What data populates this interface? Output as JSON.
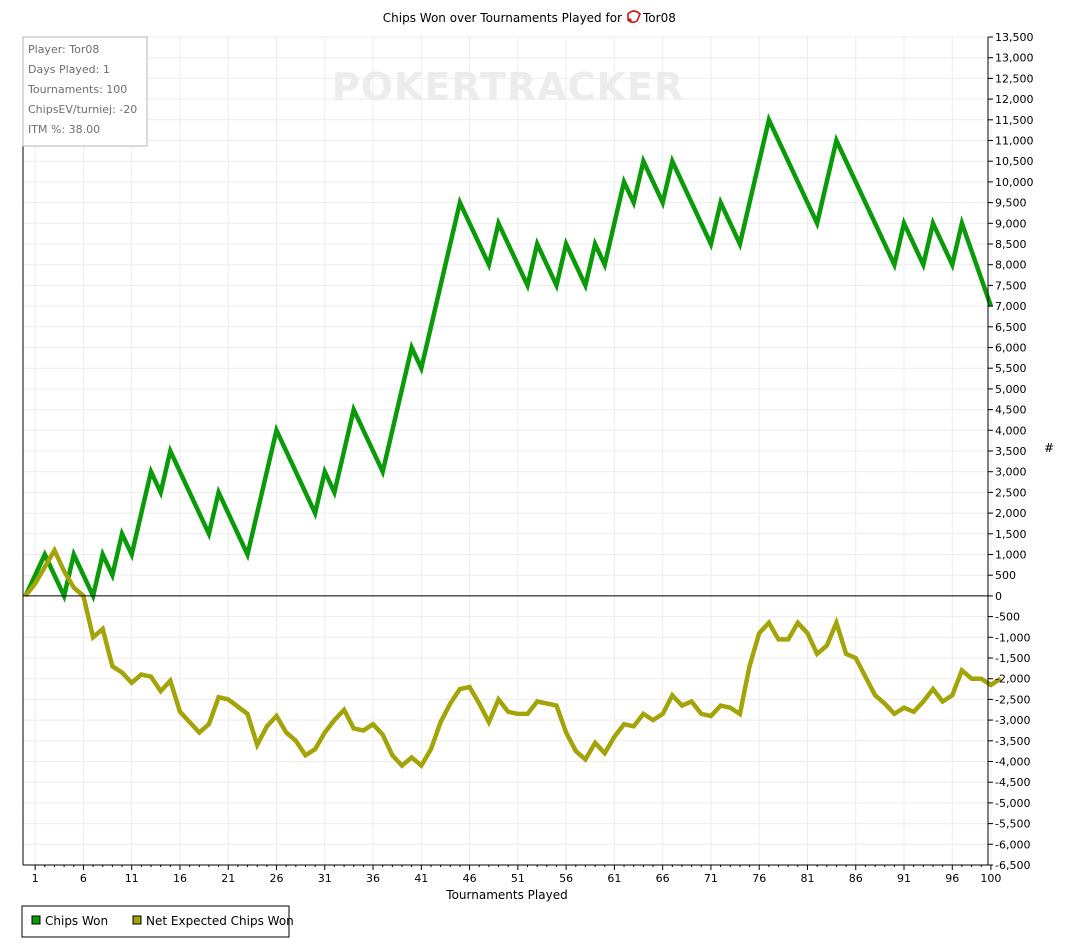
{
  "chart_data": {
    "type": "line",
    "title": "Chips Won over Tournaments Played for",
    "player_name": "Tor08",
    "xlabel": "Tournaments Played",
    "ylabel": "#",
    "xlim": [
      1,
      100
    ],
    "ylim": [
      -6500,
      13500
    ],
    "y_step": 500,
    "x_ticks": [
      1,
      6,
      11,
      16,
      21,
      26,
      31,
      36,
      41,
      46,
      51,
      56,
      61,
      66,
      71,
      76,
      81,
      86,
      91,
      96,
      100
    ],
    "grid": true,
    "legend_position": "bottom-left",
    "watermark": "POKERTRACKER",
    "info_box": [
      "Player: Tor08",
      "Days Played: 1",
      "Tournaments: 100",
      "ChipsEV/turniej: -20",
      "ITM %: 38.00"
    ],
    "series": [
      {
        "name": "Chips Won",
        "color": "#0a9a0a",
        "points": [
          [
            0,
            0
          ],
          [
            2,
            1000
          ],
          [
            4,
            0
          ],
          [
            5,
            1000
          ],
          [
            7,
            0
          ],
          [
            8,
            1000
          ],
          [
            9,
            500
          ],
          [
            10,
            1500
          ],
          [
            11,
            1000
          ],
          [
            13,
            3000
          ],
          [
            14,
            2500
          ],
          [
            15,
            3500
          ],
          [
            19,
            1500
          ],
          [
            20,
            2500
          ],
          [
            23,
            1000
          ],
          [
            26,
            4000
          ],
          [
            30,
            2000
          ],
          [
            31,
            3000
          ],
          [
            32,
            2500
          ],
          [
            34,
            4500
          ],
          [
            37,
            3000
          ],
          [
            40,
            6000
          ],
          [
            41,
            5500
          ],
          [
            45,
            9500
          ],
          [
            48,
            8000
          ],
          [
            49,
            9000
          ],
          [
            52,
            7500
          ],
          [
            53,
            8500
          ],
          [
            55,
            7500
          ],
          [
            56,
            8500
          ],
          [
            58,
            7500
          ],
          [
            59,
            8500
          ],
          [
            60,
            8000
          ],
          [
            62,
            10000
          ],
          [
            63,
            9500
          ],
          [
            64,
            10500
          ],
          [
            66,
            9500
          ],
          [
            67,
            10500
          ],
          [
            71,
            8500
          ],
          [
            72,
            9500
          ],
          [
            74,
            8500
          ],
          [
            77,
            11500
          ],
          [
            82,
            9000
          ],
          [
            84,
            11000
          ],
          [
            90,
            8000
          ],
          [
            91,
            9000
          ],
          [
            93,
            8000
          ],
          [
            94,
            9000
          ],
          [
            96,
            8000
          ],
          [
            97,
            9000
          ],
          [
            100,
            7000
          ]
        ]
      },
      {
        "name": "Net Expected Chips Won",
        "color": "#a3a30a",
        "points": [
          [
            0,
            0
          ],
          [
            1,
            300
          ],
          [
            2,
            700
          ],
          [
            3,
            1100
          ],
          [
            4,
            600
          ],
          [
            5,
            200
          ],
          [
            6,
            0
          ],
          [
            7,
            -1000
          ],
          [
            8,
            -800
          ],
          [
            9,
            -1700
          ],
          [
            10,
            -1850
          ],
          [
            11,
            -2100
          ],
          [
            12,
            -1900
          ],
          [
            13,
            -1950
          ],
          [
            14,
            -2300
          ],
          [
            15,
            -2050
          ],
          [
            16,
            -2800
          ],
          [
            18,
            -3300
          ],
          [
            19,
            -3100
          ],
          [
            20,
            -2450
          ],
          [
            21,
            -2500
          ],
          [
            23,
            -2850
          ],
          [
            24,
            -3600
          ],
          [
            25,
            -3150
          ],
          [
            26,
            -2900
          ],
          [
            27,
            -3300
          ],
          [
            28,
            -3500
          ],
          [
            29,
            -3850
          ],
          [
            30,
            -3700
          ],
          [
            31,
            -3300
          ],
          [
            32,
            -3000
          ],
          [
            33,
            -2750
          ],
          [
            34,
            -3200
          ],
          [
            35,
            -3250
          ],
          [
            36,
            -3100
          ],
          [
            37,
            -3350
          ],
          [
            38,
            -3850
          ],
          [
            39,
            -4100
          ],
          [
            40,
            -3900
          ],
          [
            41,
            -4100
          ],
          [
            42,
            -3700
          ],
          [
            43,
            -3050
          ],
          [
            44,
            -2600
          ],
          [
            45,
            -2250
          ],
          [
            46,
            -2200
          ],
          [
            47,
            -2600
          ],
          [
            48,
            -3050
          ],
          [
            49,
            -2500
          ],
          [
            50,
            -2800
          ],
          [
            51,
            -2850
          ],
          [
            52,
            -2850
          ],
          [
            53,
            -2550
          ],
          [
            54,
            -2600
          ],
          [
            55,
            -2650
          ],
          [
            56,
            -3300
          ],
          [
            57,
            -3750
          ],
          [
            58,
            -3950
          ],
          [
            59,
            -3550
          ],
          [
            60,
            -3800
          ],
          [
            61,
            -3400
          ],
          [
            62,
            -3100
          ],
          [
            63,
            -3150
          ],
          [
            64,
            -2850
          ],
          [
            65,
            -3000
          ],
          [
            66,
            -2850
          ],
          [
            67,
            -2400
          ],
          [
            68,
            -2650
          ],
          [
            69,
            -2550
          ],
          [
            70,
            -2850
          ],
          [
            71,
            -2900
          ],
          [
            72,
            -2650
          ],
          [
            73,
            -2700
          ],
          [
            74,
            -2850
          ],
          [
            75,
            -1700
          ],
          [
            76,
            -900
          ],
          [
            77,
            -650
          ],
          [
            78,
            -1050
          ],
          [
            79,
            -1050
          ],
          [
            80,
            -650
          ],
          [
            81,
            -900
          ],
          [
            82,
            -1400
          ],
          [
            83,
            -1200
          ],
          [
            84,
            -650
          ],
          [
            85,
            -1400
          ],
          [
            86,
            -1500
          ],
          [
            88,
            -2400
          ],
          [
            89,
            -2600
          ],
          [
            90,
            -2850
          ],
          [
            91,
            -2700
          ],
          [
            92,
            -2800
          ],
          [
            93,
            -2550
          ],
          [
            94,
            -2250
          ],
          [
            95,
            -2550
          ],
          [
            96,
            -2400
          ],
          [
            97,
            -1800
          ],
          [
            98,
            -2000
          ],
          [
            99,
            -2000
          ],
          [
            100,
            -2150
          ],
          [
            101,
            -2000
          ]
        ]
      }
    ]
  }
}
